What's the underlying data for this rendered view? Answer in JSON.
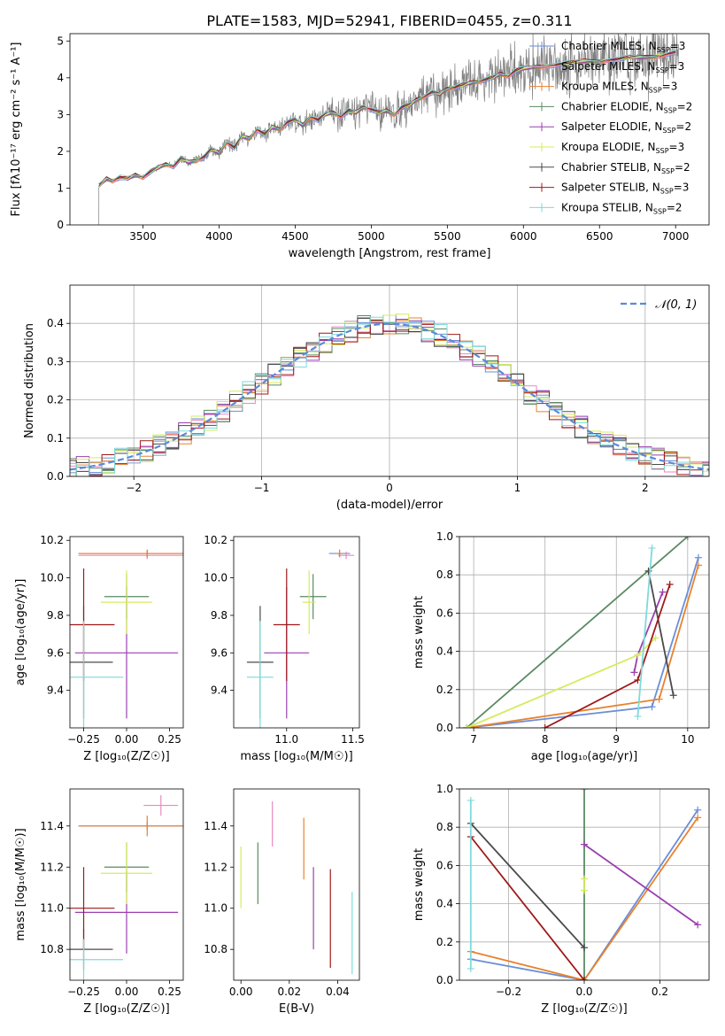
{
  "figure_title": "PLATE=1583, MJD=52941, FIBERID=0455, z=0.311",
  "model_colors": {
    "Chabrier MILES": "#6a8ed8",
    "Salpeter MILES": "#e88ac0",
    "Kroupa MILES": "#e8822d",
    "Chabrier ELODIE": "#5a8a62",
    "Salpeter ELODIE": "#9a3fb0",
    "Kroupa ELODIE": "#d4ec5c",
    "Chabrier STELIB": "#4a4a4a",
    "Salpeter STELIB": "#a01818",
    "Kroupa STELIB": "#7edada"
  },
  "legend_spectrum": [
    {
      "name": "Chabrier MILES",
      "nssp": "3"
    },
    {
      "name": "Salpeter MILES",
      "nssp": "3"
    },
    {
      "name": "Kroupa MILES",
      "nssp": "3"
    },
    {
      "name": "Chabrier ELODIE",
      "nssp": "2"
    },
    {
      "name": "Salpeter ELODIE",
      "nssp": "2"
    },
    {
      "name": "Kroupa ELODIE",
      "nssp": "3"
    },
    {
      "name": "Chabrier STELIB",
      "nssp": "2"
    },
    {
      "name": "Salpeter STELIB",
      "nssp": "3"
    },
    {
      "name": "Kroupa STELIB",
      "nssp": "2"
    }
  ],
  "legend_hist": "𝒩(0, 1)",
  "chart_data": [
    {
      "id": "spectrum",
      "type": "line",
      "xlabel": "wavelength [Angstrom, rest frame]",
      "ylabel": "Flux [fλ10⁻¹⁷ erg cm⁻² s⁻¹ A⁻¹]",
      "xlim": [
        3020,
        7220
      ],
      "ylim": [
        0,
        5.2
      ],
      "xticks": [
        3500,
        4000,
        4500,
        5000,
        5500,
        6000,
        6500,
        7000
      ],
      "yticks": [
        0,
        1,
        2,
        3,
        4,
        5
      ],
      "model_x": [
        3210,
        3260,
        3300,
        3350,
        3400,
        3450,
        3500,
        3550,
        3600,
        3650,
        3700,
        3750,
        3800,
        3850,
        3900,
        3950,
        4000,
        4050,
        4100,
        4150,
        4200,
        4250,
        4300,
        4350,
        4400,
        4450,
        4500,
        4550,
        4600,
        4650,
        4700,
        4750,
        4800,
        4850,
        4900,
        4950,
        5000,
        5050,
        5100,
        5150,
        5200,
        5250,
        5300,
        5350,
        5400,
        5450,
        5500,
        5550,
        5600,
        5650,
        5700,
        5750,
        5800,
        5850,
        5900,
        5950,
        6000,
        6100,
        6200,
        6300,
        6400,
        6500,
        6600,
        6700,
        6800,
        6900,
        7000
      ],
      "model_y": [
        1.05,
        1.25,
        1.2,
        1.3,
        1.25,
        1.35,
        1.3,
        1.45,
        1.55,
        1.65,
        1.6,
        1.8,
        1.7,
        1.75,
        1.85,
        2.05,
        1.95,
        2.25,
        2.1,
        2.4,
        2.35,
        2.6,
        2.45,
        2.65,
        2.6,
        2.8,
        2.85,
        2.7,
        2.95,
        2.85,
        3.0,
        3.05,
        2.95,
        3.1,
        3.05,
        3.2,
        3.15,
        3.05,
        3.1,
        3.0,
        3.2,
        3.25,
        3.4,
        3.5,
        3.6,
        3.55,
        3.7,
        3.75,
        3.8,
        3.85,
        3.9,
        3.95,
        4.0,
        4.1,
        4.05,
        4.2,
        4.25,
        4.3,
        4.35,
        4.4,
        4.45,
        4.45,
        4.5,
        4.55,
        4.55,
        4.6,
        4.7
      ],
      "observed_color": "#808080"
    },
    {
      "id": "residuals",
      "type": "bar",
      "xlabel": "(data-model)/error",
      "ylabel": "Normed distribution",
      "xlim": [
        -2.5,
        2.5
      ],
      "ylim": [
        0,
        0.5
      ],
      "xticks": [
        -2,
        -1,
        0,
        1,
        2
      ],
      "yticks": [
        0.0,
        0.1,
        0.2,
        0.3,
        0.4
      ],
      "gaussian": {
        "mu": 0,
        "sigma": 1,
        "color": "#5a8ad8"
      }
    },
    {
      "id": "age_vs_Z",
      "type": "scatter",
      "xlabel": "Z [log₁₀(Z/Z☉)]",
      "ylabel": "age  [log₁₀(age/yr)]",
      "xlim": [
        -0.33,
        0.33
      ],
      "ylim": [
        9.2,
        10.22
      ],
      "xticks": [
        -0.25,
        0.0,
        0.25
      ],
      "yticks": [
        9.4,
        9.6,
        9.8,
        10.0,
        10.2
      ],
      "points": [
        {
          "model": "Chabrier MILES",
          "x": 0.12,
          "xerr": 0.4,
          "y": 10.13,
          "yerr": 0.02
        },
        {
          "model": "Salpeter MILES",
          "x": 0.12,
          "xerr": 0.4,
          "y": 10.12,
          "yerr": 0.02
        },
        {
          "model": "Kroupa MILES",
          "x": 0.12,
          "xerr": 0.4,
          "y": 10.13,
          "yerr": 0.02
        },
        {
          "model": "Chabrier ELODIE",
          "x": 0.0,
          "xerr": 0.13,
          "y": 9.9,
          "yerr": 0.12
        },
        {
          "model": "Salpeter ELODIE",
          "x": 0.0,
          "xerr": 0.3,
          "y": 9.6,
          "yerr": 0.35
        },
        {
          "model": "Kroupa ELODIE",
          "x": 0.0,
          "xerr": 0.15,
          "y": 9.87,
          "yerr": 0.17
        },
        {
          "model": "Chabrier STELIB",
          "x": -0.25,
          "xerr": 0.17,
          "y": 9.55,
          "yerr": 0.3
        },
        {
          "model": "Salpeter STELIB",
          "x": -0.25,
          "xerr": 0.18,
          "y": 9.75,
          "yerr": 0.3
        },
        {
          "model": "Kroupa STELIB",
          "x": -0.25,
          "xerr": 0.23,
          "y": 9.47,
          "yerr": 0.3
        }
      ]
    },
    {
      "id": "age_vs_mass",
      "type": "scatter",
      "xlabel": "mass [log₁₀(M/M☉)]",
      "ylabel": "",
      "xlim": [
        10.6,
        11.55
      ],
      "ylim": [
        9.2,
        10.22
      ],
      "xticks": [
        11.0,
        11.5
      ],
      "yticks": [
        9.4,
        9.6,
        9.8,
        10.0,
        10.2
      ],
      "points": [
        {
          "model": "Chabrier MILES",
          "x": 11.4,
          "xerr": 0.08,
          "y": 10.13,
          "yerr": 0.02
        },
        {
          "model": "Salpeter MILES",
          "x": 11.45,
          "xerr": 0.06,
          "y": 10.12,
          "yerr": 0.02
        },
        {
          "model": "Kroupa MILES",
          "x": 11.4,
          "xerr": 0.02,
          "y": 10.13,
          "yerr": 0.02
        },
        {
          "model": "Chabrier ELODIE",
          "x": 11.2,
          "xerr": 0.1,
          "y": 9.9,
          "yerr": 0.12
        },
        {
          "model": "Salpeter ELODIE",
          "x": 11.0,
          "xerr": 0.17,
          "y": 9.6,
          "yerr": 0.35
        },
        {
          "model": "Kroupa ELODIE",
          "x": 11.17,
          "xerr": 0.05,
          "y": 9.87,
          "yerr": 0.17
        },
        {
          "model": "Chabrier STELIB",
          "x": 10.8,
          "xerr": 0.1,
          "y": 9.55,
          "yerr": 0.3
        },
        {
          "model": "Salpeter STELIB",
          "x": 11.0,
          "xerr": 0.1,
          "y": 9.75,
          "yerr": 0.3
        },
        {
          "model": "Kroupa STELIB",
          "x": 10.8,
          "xerr": 0.1,
          "y": 9.47,
          "yerr": 0.3
        }
      ]
    },
    {
      "id": "weight_vs_age",
      "type": "line",
      "xlabel": "age  [log₁₀(age/yr)]",
      "ylabel": "mass weight",
      "xlim": [
        6.8,
        10.3
      ],
      "ylim": [
        0,
        1.0
      ],
      "xticks": [
        7,
        8,
        9,
        10
      ],
      "yticks": [
        0.0,
        0.2,
        0.4,
        0.6,
        0.8,
        1.0
      ],
      "series": [
        {
          "model": "Chabrier MILES",
          "x": [
            6.9,
            9.5,
            10.15
          ],
          "y": [
            0.0,
            0.11,
            0.89
          ]
        },
        {
          "model": "Kroupa MILES",
          "x": [
            6.9,
            9.6,
            10.15
          ],
          "y": [
            0.0,
            0.15,
            0.85
          ]
        },
        {
          "model": "Chabrier ELODIE",
          "x": [
            6.9,
            10.0
          ],
          "y": [
            0.0,
            1.0
          ]
        },
        {
          "model": "Salpeter ELODIE",
          "x": [
            9.25,
            9.3,
            9.65
          ],
          "y": [
            0.29,
            0.38,
            0.71
          ]
        },
        {
          "model": "Kroupa ELODIE",
          "x": [
            6.9,
            9.3,
            9.55
          ],
          "y": [
            0.0,
            0.38,
            0.47
          ]
        },
        {
          "model": "Chabrier STELIB",
          "x": [
            9.45,
            9.8
          ],
          "y": [
            0.82,
            0.17
          ]
        },
        {
          "model": "Salpeter STELIB",
          "x": [
            8.0,
            9.3,
            9.75
          ],
          "y": [
            0.0,
            0.25,
            0.75
          ]
        },
        {
          "model": "Kroupa STELIB",
          "x": [
            9.3,
            9.5
          ],
          "y": [
            0.06,
            0.94
          ]
        }
      ]
    },
    {
      "id": "mass_vs_Z",
      "type": "scatter",
      "xlabel": "Z [log₁₀(Z/Z☉)]",
      "ylabel": "mass [log₁₀(M/M☉)]",
      "xlim": [
        -0.33,
        0.33
      ],
      "ylim": [
        10.65,
        11.58
      ],
      "xticks": [
        -0.25,
        0.0,
        0.25
      ],
      "yticks": [
        10.8,
        11.0,
        11.2,
        11.4
      ],
      "points": [
        {
          "model": "Chabrier MILES",
          "x": 0.12,
          "xerr": 0.4,
          "y": 11.4,
          "yerr": 0.02
        },
        {
          "model": "Salpeter MILES",
          "x": 0.2,
          "xerr": 0.1,
          "y": 11.5,
          "yerr": 0.05
        },
        {
          "model": "Kroupa MILES",
          "x": 0.12,
          "xerr": 0.4,
          "y": 11.4,
          "yerr": 0.05
        },
        {
          "model": "Chabrier ELODIE",
          "x": 0.0,
          "xerr": 0.13,
          "y": 11.2,
          "yerr": 0.12
        },
        {
          "model": "Salpeter ELODIE",
          "x": 0.0,
          "xerr": 0.3,
          "y": 10.98,
          "yerr": 0.2
        },
        {
          "model": "Kroupa ELODIE",
          "x": 0.0,
          "xerr": 0.15,
          "y": 11.17,
          "yerr": 0.15
        },
        {
          "model": "Chabrier STELIB",
          "x": -0.25,
          "xerr": 0.17,
          "y": 10.8,
          "yerr": 0.1
        },
        {
          "model": "Salpeter STELIB",
          "x": -0.25,
          "xerr": 0.18,
          "y": 11.0,
          "yerr": 0.2
        },
        {
          "model": "Kroupa STELIB",
          "x": -0.25,
          "xerr": 0.23,
          "y": 10.75,
          "yerr": 0.1
        }
      ]
    },
    {
      "id": "mass_vs_EBV",
      "type": "scatter",
      "xlabel": "E(B-V)",
      "ylabel": "",
      "xlim": [
        -0.003,
        0.049
      ],
      "ylim": [
        10.65,
        11.58
      ],
      "xticks": [
        0.0,
        0.02,
        0.04
      ],
      "yticks": [
        10.8,
        11.0,
        11.2,
        11.4
      ],
      "points": [
        {
          "model": "Kroupa ELODIE",
          "x": 0.0,
          "xerr": 0,
          "y": 11.15,
          "yerr": 0.15
        },
        {
          "model": "Chabrier ELODIE",
          "x": 0.007,
          "xerr": 0,
          "y": 11.17,
          "yerr": 0.15
        },
        {
          "model": "Salpeter MILES",
          "x": 0.013,
          "xerr": 0,
          "y": 11.41,
          "yerr": 0.11
        },
        {
          "model": "Kroupa MILES",
          "x": 0.026,
          "xerr": 0,
          "y": 11.29,
          "yerr": 0.15
        },
        {
          "model": "Salpeter ELODIE",
          "x": 0.03,
          "xerr": 0,
          "y": 11.0,
          "yerr": 0.2
        },
        {
          "model": "Salpeter STELIB",
          "x": 0.037,
          "xerr": 0,
          "y": 10.95,
          "yerr": 0.24
        },
        {
          "model": "Kroupa STELIB",
          "x": 0.046,
          "xerr": 0,
          "y": 10.88,
          "yerr": 0.2
        }
      ]
    },
    {
      "id": "weight_vs_Z",
      "type": "line",
      "xlabel": "Z [log₁₀(Z/Z☉)]",
      "ylabel": "mass weight",
      "xlim": [
        -0.33,
        0.33
      ],
      "ylim": [
        0,
        1.0
      ],
      "xticks": [
        -0.2,
        0.0,
        0.2
      ],
      "yticks": [
        0.0,
        0.2,
        0.4,
        0.6,
        0.8,
        1.0
      ],
      "series": [
        {
          "model": "Chabrier MILES",
          "x": [
            -0.3,
            0.0,
            0.3
          ],
          "y": [
            0.11,
            0.0,
            0.89
          ]
        },
        {
          "model": "Kroupa MILES",
          "x": [
            -0.3,
            0.0,
            0.3
          ],
          "y": [
            0.15,
            0.0,
            0.85
          ]
        },
        {
          "model": "Chabrier ELODIE",
          "x": [
            0.0,
            0.0
          ],
          "y": [
            0.0,
            1.0
          ]
        },
        {
          "model": "Salpeter ELODIE",
          "x": [
            0.0,
            0.3
          ],
          "y": [
            0.71,
            0.29
          ]
        },
        {
          "model": "Kroupa ELODIE",
          "x": [
            0.0,
            0.0
          ],
          "y": [
            0.47,
            0.53
          ]
        },
        {
          "model": "Chabrier STELIB",
          "x": [
            -0.3,
            0.0
          ],
          "y": [
            0.82,
            0.17
          ]
        },
        {
          "model": "Salpeter STELIB",
          "x": [
            -0.3,
            0.0
          ],
          "y": [
            0.75,
            0.0
          ]
        },
        {
          "model": "Kroupa STELIB",
          "x": [
            -0.3,
            -0.3
          ],
          "y": [
            0.06,
            0.94
          ]
        }
      ]
    }
  ]
}
